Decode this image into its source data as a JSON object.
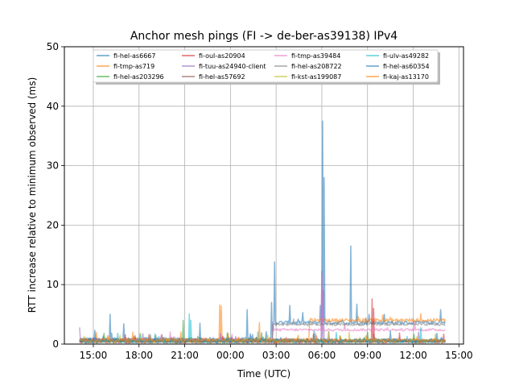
{
  "chart_data": {
    "type": "line",
    "title": "Anchor mesh pings (FI -> de-ber-as39138) IPv4",
    "xlabel": "Time (UTC)",
    "ylabel": "RTT increase relative to minimum observed (ms)",
    "ylim": [
      0,
      50
    ],
    "yticks": [
      0,
      10,
      20,
      30,
      40,
      50
    ],
    "xlim_hours": [
      13.1,
      39.3
    ],
    "xticks": [
      {
        "h": 15,
        "label": "15:00"
      },
      {
        "h": 18,
        "label": "18:00"
      },
      {
        "h": 21,
        "label": "21:00"
      },
      {
        "h": 24,
        "label": "00:00"
      },
      {
        "h": 27,
        "label": "03:00"
      },
      {
        "h": 30,
        "label": "06:00"
      },
      {
        "h": 33,
        "label": "09:00"
      },
      {
        "h": 36,
        "label": "12:00"
      },
      {
        "h": 39,
        "label": "15:00"
      }
    ],
    "x_start_hour": 14.1,
    "x_end_hour": 38.1,
    "grid": true,
    "legend_position": "top-center",
    "series": [
      {
        "name": "fi-hel-as6667",
        "color": "#1f77b4",
        "base": 0.8,
        "noise": 0.3,
        "level_shift": [
          26.8,
          38.1,
          3.6
        ],
        "spikes": [
          [
            16.1,
            5.0
          ],
          [
            17.0,
            3.4
          ],
          [
            26.7,
            7.0
          ],
          [
            26.9,
            13.8
          ],
          [
            27.9,
            6.5
          ],
          [
            29.9,
            6.5
          ],
          [
            30.05,
            37.5
          ],
          [
            30.15,
            28.0
          ],
          [
            31.9,
            16.5
          ],
          [
            32.3,
            6.7
          ],
          [
            33.1,
            5.0
          ],
          [
            34.1,
            5.0
          ],
          [
            37.8,
            5.8
          ],
          [
            25.1,
            5.8
          ]
        ]
      },
      {
        "name": "fi-tmp-as719",
        "color": "#ff7f0e",
        "base": 0.7,
        "noise": 0.3,
        "level_shift": [
          29.2,
          38.1,
          4.0
        ],
        "spikes": [
          [
            23.3,
            6.6
          ],
          [
            23.4,
            6.4
          ],
          [
            32.4,
            4.6
          ],
          [
            33.5,
            4.3
          ],
          [
            34.5,
            4.5
          ]
        ]
      },
      {
        "name": "fi-hel-as203296",
        "color": "#2ca02c",
        "base": 0.5,
        "noise": 0.3,
        "level_shift": null,
        "spikes": [
          [
            20.9,
            4.0
          ],
          [
            15.7,
            1.8
          ],
          [
            33.0,
            2.0
          ]
        ]
      },
      {
        "name": "fi-oul-as20904",
        "color": "#d62728",
        "base": 0.4,
        "noise": 0.2,
        "level_shift": null,
        "spikes": [
          [
            33.3,
            7.6
          ],
          [
            33.4,
            6.0
          ]
        ]
      },
      {
        "name": "fi-tuu-as24940-client",
        "color": "#9467bd",
        "base": 0.6,
        "noise": 0.3,
        "level_shift": null,
        "spikes": [
          [
            30.0,
            12.3
          ],
          [
            30.1,
            9.0
          ],
          [
            14.1,
            2.8
          ]
        ]
      },
      {
        "name": "fi-hel-as57692",
        "color": "#8c564b",
        "base": 0.4,
        "noise": 0.2,
        "level_shift": null,
        "spikes": [
          [
            19.5,
            1.6
          ]
        ]
      },
      {
        "name": "fi-tmp-as39484",
        "color": "#e377c2",
        "base": 0.7,
        "noise": 0.2,
        "level_shift": [
          26.8,
          38.1,
          2.4
        ],
        "spikes": [
          [
            30.0,
            11.5
          ]
        ]
      },
      {
        "name": "fi-hel-as208722",
        "color": "#7f7f7f",
        "base": 0.5,
        "noise": 0.2,
        "level_shift": [
          26.8,
          38.1,
          3.3
        ],
        "spikes": []
      },
      {
        "name": "fi-kst-as199087",
        "color": "#bcbd22",
        "base": 0.6,
        "noise": 0.3,
        "level_shift": null,
        "spikes": [
          [
            18.1,
            1.8
          ]
        ]
      },
      {
        "name": "fi-ulv-as49282",
        "color": "#17becf",
        "base": 0.5,
        "noise": 0.3,
        "level_shift": null,
        "spikes": [
          [
            21.3,
            5.1
          ],
          [
            21.4,
            4.0
          ],
          [
            36.5,
            2.8
          ]
        ]
      },
      {
        "name": "fi-hel-as60354",
        "color": "#1f77b4",
        "base": 0.6,
        "noise": 0.3,
        "level_shift": null,
        "spikes": [
          [
            22.0,
            3.5
          ],
          [
            15.1,
            2.3
          ]
        ]
      },
      {
        "name": "fi-kaj-as13170",
        "color": "#ff7f0e",
        "base": 0.6,
        "noise": 0.3,
        "level_shift": null,
        "spikes": [
          [
            17.6,
            2.0
          ],
          [
            25.9,
            3.6
          ]
        ]
      }
    ]
  }
}
